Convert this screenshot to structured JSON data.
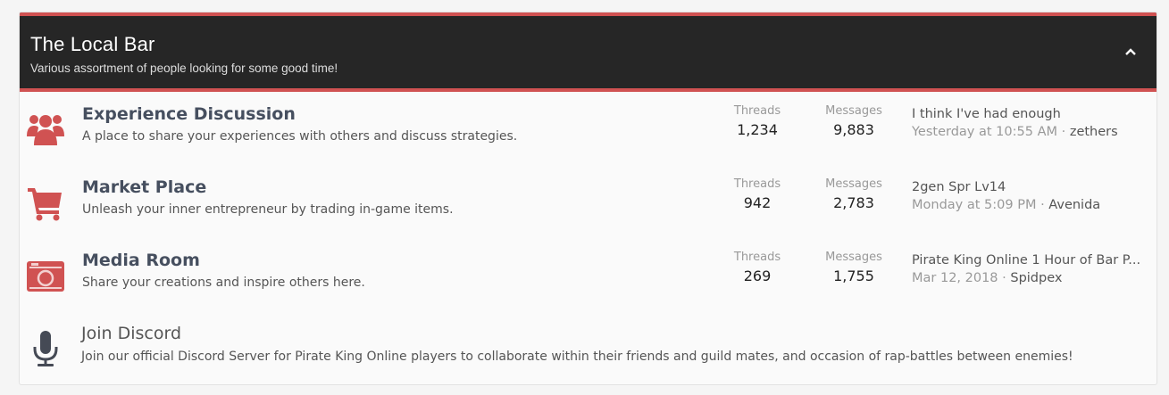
{
  "category": {
    "title": "The Local Bar",
    "subtitle": "Various assortment of people looking for some good time!",
    "collapse_icon": "chevron-up-icon"
  },
  "accent": "#d05252",
  "forums": [
    {
      "icon": "users-icon",
      "title": "Experience Discussion",
      "description": "A place to share your experiences with others and discuss strategies.",
      "threads_label": "Threads",
      "threads": "1,234",
      "messages_label": "Messages",
      "messages": "9,883",
      "latest_title": "I think I've had enough",
      "latest_date": "Yesterday at 10:55 AM",
      "latest_user": "zethers"
    },
    {
      "icon": "shopping-cart-icon",
      "title": "Market Place",
      "description": "Unleash your inner entrepreneur by trading in-game items.",
      "threads_label": "Threads",
      "threads": "942",
      "messages_label": "Messages",
      "messages": "2,783",
      "latest_title": "2gen Spr Lv14",
      "latest_date": "Monday at 5:09 PM",
      "latest_user": "Avenida"
    },
    {
      "icon": "camera-icon",
      "title": "Media Room",
      "description": "Share your creations and inspire others here.",
      "threads_label": "Threads",
      "threads": "269",
      "messages_label": "Messages",
      "messages": "1,755",
      "latest_title": "Pirate King Online 1 Hour of Bar P...",
      "latest_date": "Mar 12, 2018",
      "latest_user": "Spidpex"
    }
  ],
  "link": {
    "icon": "microphone-icon",
    "title": "Join Discord",
    "description": "Join our official Discord Server for Pirate King Online players to collaborate within their friends and guild mates, and occasion of rap-battles between enemies!"
  }
}
